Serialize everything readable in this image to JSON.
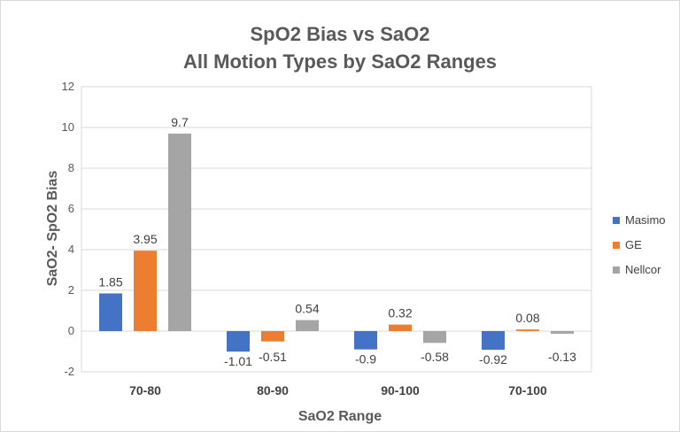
{
  "chart_data": {
    "type": "bar",
    "title": [
      "SpO2 Bias vs SaO2",
      "All Motion Types by SaO2 Ranges"
    ],
    "xlabel": "SaO2 Range",
    "ylabel": "SaO2- SpO2 Bias",
    "categories": [
      "70-80",
      "80-90",
      "90-100",
      "70-100"
    ],
    "series": [
      {
        "name": "Masimo",
        "color": "#4472C4",
        "values": [
          1.85,
          -1.01,
          -0.9,
          -0.92
        ]
      },
      {
        "name": "GE",
        "color": "#ED7D31",
        "values": [
          3.95,
          -0.51,
          0.32,
          0.08
        ]
      },
      {
        "name": "Nellcor",
        "color": "#A5A5A5",
        "values": [
          9.7,
          0.54,
          -0.58,
          -0.13
        ]
      }
    ],
    "ylim": [
      -2,
      12
    ],
    "yticks": [
      -2,
      0,
      2,
      4,
      6,
      8,
      10,
      12
    ],
    "grid": true,
    "legend": "right",
    "data_labels": true
  }
}
